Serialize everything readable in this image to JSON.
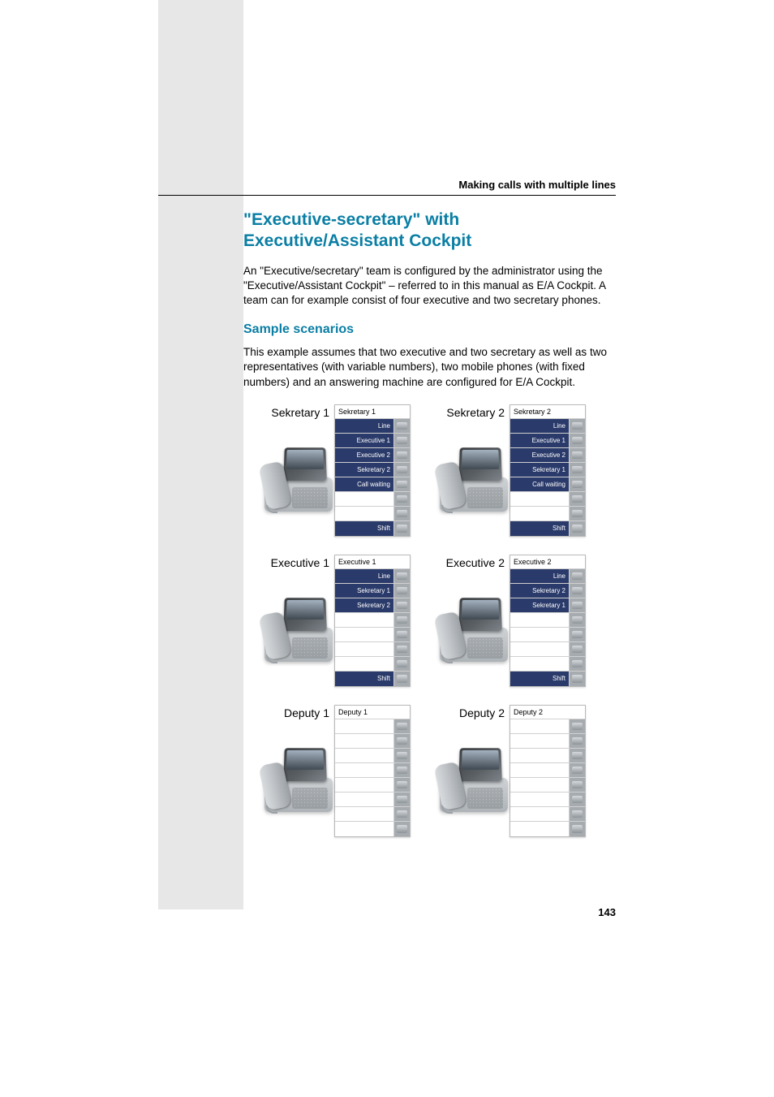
{
  "running_head": "Making calls with multiple lines",
  "page_number": "143",
  "heading1": "\"Executive-secretary\" with Executive/Assistant Cockpit",
  "intro": "An \"Executive/secretary\" team is configured by the administrator using the \"Executive/Assistant Cockpit\" – referred to in this manual as E/A Cockpit. A team can for example consist of four executive and two secretary phones.",
  "heading2": "Sample scenarios",
  "sample_intro": "This example assumes that two executive and two secretary as well as two representatives (with variable numbers), two mobile phones (with fixed numbers) and an answering machine are configured for E/A Cockpit.",
  "colors": {
    "heading": "#0a7ea4",
    "key_fill": "#2a3a6a",
    "keybtn": "#a6abb0",
    "sidebar": "#e7e7e7"
  },
  "stations": [
    [
      {
        "label": "Sekretary 1",
        "panel_head": "Sekretary 1",
        "keys": [
          "Line",
          "Executive 1",
          "Executive 2",
          "Sekretary 2",
          "Call waiting",
          "",
          "",
          "Shift"
        ]
      },
      {
        "label": "Sekretary 2",
        "panel_head": "Sekretary 2",
        "keys": [
          "Line",
          "Executive 1",
          "Executive 2",
          "Sekretary 1",
          "Call waiting",
          "",
          "",
          "Shift"
        ]
      }
    ],
    [
      {
        "label": "Executive 1",
        "panel_head": "Executive 1",
        "keys": [
          "Line",
          "Sekretary 1",
          "Sekretary 2",
          "",
          "",
          "",
          "",
          "Shift"
        ]
      },
      {
        "label": "Executive 2",
        "panel_head": "Executive 2",
        "keys": [
          "Line",
          "Sekretary 2",
          "Sekretary 1",
          "",
          "",
          "",
          "",
          "Shift"
        ]
      }
    ],
    [
      {
        "label": "Deputy 1",
        "panel_head": "Deputy 1",
        "keys": [
          "",
          "",
          "",
          "",
          "",
          "",
          "",
          ""
        ]
      },
      {
        "label": "Deputy 2",
        "panel_head": "Deputy 2",
        "keys": [
          "",
          "",
          "",
          "",
          "",
          "",
          "",
          ""
        ]
      }
    ]
  ]
}
